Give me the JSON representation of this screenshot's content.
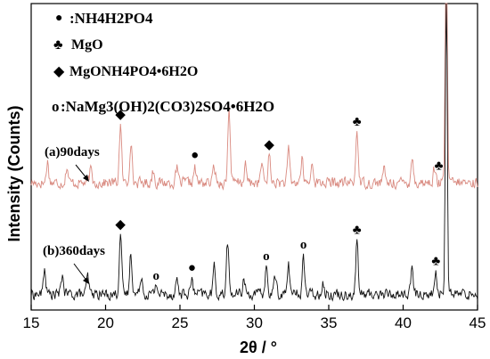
{
  "chart_data": {
    "type": "line",
    "xlabel": "2θ / °",
    "ylabel": "Intensity (Counts)",
    "xlim": [
      15,
      45
    ],
    "xticks": [
      "15",
      "20",
      "25",
      "30",
      "35",
      "40",
      "45"
    ],
    "grid": false,
    "legend": [
      {
        "symbol": "●",
        "label": ":NH4H2PO4",
        "icon": "filled-circle"
      },
      {
        "symbol": "♣",
        "label": "MgO",
        "icon": "club"
      },
      {
        "symbol": "◆",
        "label": "MgONH4PO4•6H2O",
        "icon": "diamond"
      },
      {
        "symbol": "o",
        "label": ":NaMg3(OH)2(CO3)2SO4•6H2O",
        "icon": "open-circle"
      }
    ],
    "series": [
      {
        "name": "(a)90days",
        "color": "#d98a80",
        "baseline": 0.4,
        "peaks": [
          {
            "x": 16.1,
            "y": 2.0
          },
          {
            "x": 17.4,
            "y": 1.5
          },
          {
            "x": 19.0,
            "y": 1.2
          },
          {
            "x": 21.0,
            "y": 5.4
          },
          {
            "x": 21.7,
            "y": 4.0
          },
          {
            "x": 23.2,
            "y": 1.2
          },
          {
            "x": 24.8,
            "y": 1.3
          },
          {
            "x": 26.0,
            "y": 1.4
          },
          {
            "x": 27.3,
            "y": 1.6
          },
          {
            "x": 28.3,
            "y": 7.2
          },
          {
            "x": 29.4,
            "y": 1.6
          },
          {
            "x": 30.5,
            "y": 1.8
          },
          {
            "x": 31.0,
            "y": 2.6
          },
          {
            "x": 32.3,
            "y": 3.0
          },
          {
            "x": 33.2,
            "y": 2.2
          },
          {
            "x": 33.9,
            "y": 1.9
          },
          {
            "x": 36.9,
            "y": 5.0
          },
          {
            "x": 38.7,
            "y": 1.3
          },
          {
            "x": 40.6,
            "y": 2.5
          },
          {
            "x": 42.1,
            "y": 1.3
          },
          {
            "x": 42.9,
            "y": 30
          }
        ]
      },
      {
        "name": "(b)360days",
        "color": "#111111",
        "baseline": 0.4,
        "peaks": [
          {
            "x": 15.9,
            "y": 2.4
          },
          {
            "x": 17.1,
            "y": 1.8
          },
          {
            "x": 18.8,
            "y": 1.6
          },
          {
            "x": 21.0,
            "y": 5.8
          },
          {
            "x": 21.7,
            "y": 4.0
          },
          {
            "x": 22.4,
            "y": 1.9
          },
          {
            "x": 23.4,
            "y": 1.0
          },
          {
            "x": 24.8,
            "y": 1.4
          },
          {
            "x": 25.8,
            "y": 1.4
          },
          {
            "x": 27.3,
            "y": 2.5
          },
          {
            "x": 28.2,
            "y": 5.0
          },
          {
            "x": 29.3,
            "y": 1.6
          },
          {
            "x": 30.8,
            "y": 2.5
          },
          {
            "x": 31.4,
            "y": 1.8
          },
          {
            "x": 32.3,
            "y": 2.8
          },
          {
            "x": 33.3,
            "y": 3.5
          },
          {
            "x": 34.6,
            "y": 1.2
          },
          {
            "x": 36.9,
            "y": 5.0
          },
          {
            "x": 40.6,
            "y": 2.4
          },
          {
            "x": 42.2,
            "y": 2.0
          },
          {
            "x": 42.9,
            "y": 30
          }
        ]
      }
    ],
    "annotations": [
      {
        "series": 0,
        "x": 21.0,
        "symbol": "◆",
        "icon": "diamond"
      },
      {
        "series": 0,
        "x": 26.0,
        "symbol": "●",
        "icon": "filled-circle"
      },
      {
        "series": 0,
        "x": 31.0,
        "symbol": "◆",
        "icon": "diamond"
      },
      {
        "series": 0,
        "x": 36.9,
        "symbol": "♣",
        "icon": "club"
      },
      {
        "series": 0,
        "x": 42.4,
        "symbol": "♣",
        "icon": "club"
      },
      {
        "series": 1,
        "x": 21.0,
        "symbol": "◆",
        "icon": "diamond"
      },
      {
        "series": 1,
        "x": 23.4,
        "symbol": "o",
        "icon": "open-circle"
      },
      {
        "series": 1,
        "x": 25.8,
        "symbol": "●",
        "icon": "filled-circle"
      },
      {
        "series": 1,
        "x": 30.8,
        "symbol": "o",
        "icon": "open-circle"
      },
      {
        "series": 1,
        "x": 33.3,
        "symbol": "o",
        "icon": "open-circle"
      },
      {
        "series": 1,
        "x": 36.9,
        "symbol": "♣",
        "icon": "club"
      },
      {
        "series": 1,
        "x": 42.2,
        "symbol": "♣",
        "icon": "club"
      }
    ]
  }
}
